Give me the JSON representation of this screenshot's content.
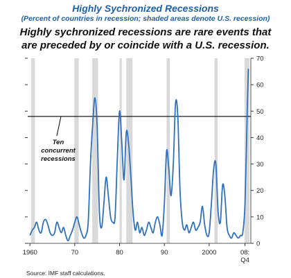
{
  "title": "Highly Sychronized Recessions",
  "subtitle": "(Percent of countries in recession; shaded areas denote U.S. recession)",
  "headline_lines": [
    "Highly sychronized recessions are rare events that",
    "are preceded by or coincide with a U.S. recession."
  ],
  "source": "Source: IMF staff calculations.",
  "colors": {
    "line": "#2f6fbf",
    "shade": "#d9d9d9",
    "threshold": "#000000",
    "title": "#1f5fa8"
  },
  "chart_data": {
    "type": "line",
    "x_ticks": [
      {
        "value": 1960,
        "label": "1960"
      },
      {
        "value": 1970,
        "label": "70"
      },
      {
        "value": 1980,
        "label": "80"
      },
      {
        "value": 1990,
        "label": "90"
      },
      {
        "value": 2000,
        "label": "2000"
      },
      {
        "value": 2008,
        "label": "08:",
        "label2": "Q4"
      }
    ],
    "y_ticks": [
      0,
      10,
      20,
      30,
      40,
      50,
      60,
      70
    ],
    "xlim": [
      1959.5,
      2009.3
    ],
    "ylim": [
      0,
      70
    ],
    "y_axis_side": "right",
    "grid": false,
    "threshold": {
      "value": 48,
      "label": [
        "Ten",
        "concurrent",
        "recessions"
      ]
    },
    "recession_shading": [
      [
        1960.25,
        1961.1
      ],
      [
        1969.9,
        1970.9
      ],
      [
        1973.9,
        1975.2
      ],
      [
        1980.0,
        1980.5
      ],
      [
        1981.5,
        1982.9
      ],
      [
        1990.5,
        1991.2
      ],
      [
        2001.2,
        2001.9
      ],
      [
        2007.9,
        2009.0
      ]
    ],
    "series": [
      {
        "values": [
          [
            1960.0,
            3
          ],
          [
            1960.5,
            5
          ],
          [
            1961.0,
            6
          ],
          [
            1961.5,
            8
          ],
          [
            1962.0,
            5
          ],
          [
            1962.5,
            4
          ],
          [
            1963.0,
            8
          ],
          [
            1963.5,
            9
          ],
          [
            1964.0,
            7
          ],
          [
            1964.5,
            4
          ],
          [
            1965.0,
            3
          ],
          [
            1965.5,
            4
          ],
          [
            1966.0,
            8
          ],
          [
            1966.5,
            6
          ],
          [
            1967.0,
            4
          ],
          [
            1967.5,
            6
          ],
          [
            1968.0,
            3
          ],
          [
            1968.5,
            1
          ],
          [
            1969.0,
            3
          ],
          [
            1969.5,
            5
          ],
          [
            1970.0,
            8
          ],
          [
            1970.5,
            10
          ],
          [
            1971.0,
            7
          ],
          [
            1971.5,
            4
          ],
          [
            1972.0,
            2
          ],
          [
            1972.5,
            3
          ],
          [
            1973.0,
            8
          ],
          [
            1973.5,
            30
          ],
          [
            1974.0,
            45
          ],
          [
            1974.5,
            55
          ],
          [
            1975.0,
            44
          ],
          [
            1975.5,
            12
          ],
          [
            1976.0,
            6
          ],
          [
            1976.5,
            15
          ],
          [
            1977.0,
            25
          ],
          [
            1977.5,
            18
          ],
          [
            1978.0,
            10
          ],
          [
            1978.5,
            8
          ],
          [
            1979.0,
            10
          ],
          [
            1979.5,
            32
          ],
          [
            1980.0,
            50
          ],
          [
            1980.5,
            38
          ],
          [
            1981.0,
            24
          ],
          [
            1981.5,
            42
          ],
          [
            1982.0,
            38
          ],
          [
            1982.5,
            26
          ],
          [
            1983.0,
            12
          ],
          [
            1983.5,
            5
          ],
          [
            1984.0,
            8
          ],
          [
            1984.5,
            4
          ],
          [
            1985.0,
            6
          ],
          [
            1985.5,
            3
          ],
          [
            1986.0,
            5
          ],
          [
            1986.5,
            8
          ],
          [
            1987.0,
            6
          ],
          [
            1987.5,
            4
          ],
          [
            1988.0,
            8
          ],
          [
            1988.5,
            10
          ],
          [
            1989.0,
            7
          ],
          [
            1989.5,
            3
          ],
          [
            1990.0,
            15
          ],
          [
            1990.5,
            35
          ],
          [
            1991.0,
            28
          ],
          [
            1991.5,
            18
          ],
          [
            1992.0,
            30
          ],
          [
            1992.5,
            53
          ],
          [
            1993.0,
            48
          ],
          [
            1993.5,
            20
          ],
          [
            1994.0,
            8
          ],
          [
            1994.5,
            5
          ],
          [
            1995.0,
            7
          ],
          [
            1995.5,
            4
          ],
          [
            1996.0,
            6
          ],
          [
            1996.5,
            8
          ],
          [
            1997.0,
            5
          ],
          [
            1997.5,
            6
          ],
          [
            1998.0,
            8
          ],
          [
            1998.5,
            14
          ],
          [
            1999.0,
            7
          ],
          [
            1999.5,
            3
          ],
          [
            2000.0,
            4
          ],
          [
            2000.5,
            15
          ],
          [
            2001.0,
            28
          ],
          [
            2001.5,
            30
          ],
          [
            2002.0,
            12
          ],
          [
            2002.5,
            8
          ],
          [
            2003.0,
            22
          ],
          [
            2003.5,
            18
          ],
          [
            2004.0,
            6
          ],
          [
            2004.5,
            3
          ],
          [
            2005.0,
            2
          ],
          [
            2005.5,
            4
          ],
          [
            2006.0,
            3
          ],
          [
            2006.5,
            2
          ],
          [
            2007.0,
            3
          ],
          [
            2007.5,
            4
          ],
          [
            2008.0,
            15
          ],
          [
            2008.5,
            50
          ],
          [
            2008.75,
            66
          ]
        ]
      }
    ]
  }
}
